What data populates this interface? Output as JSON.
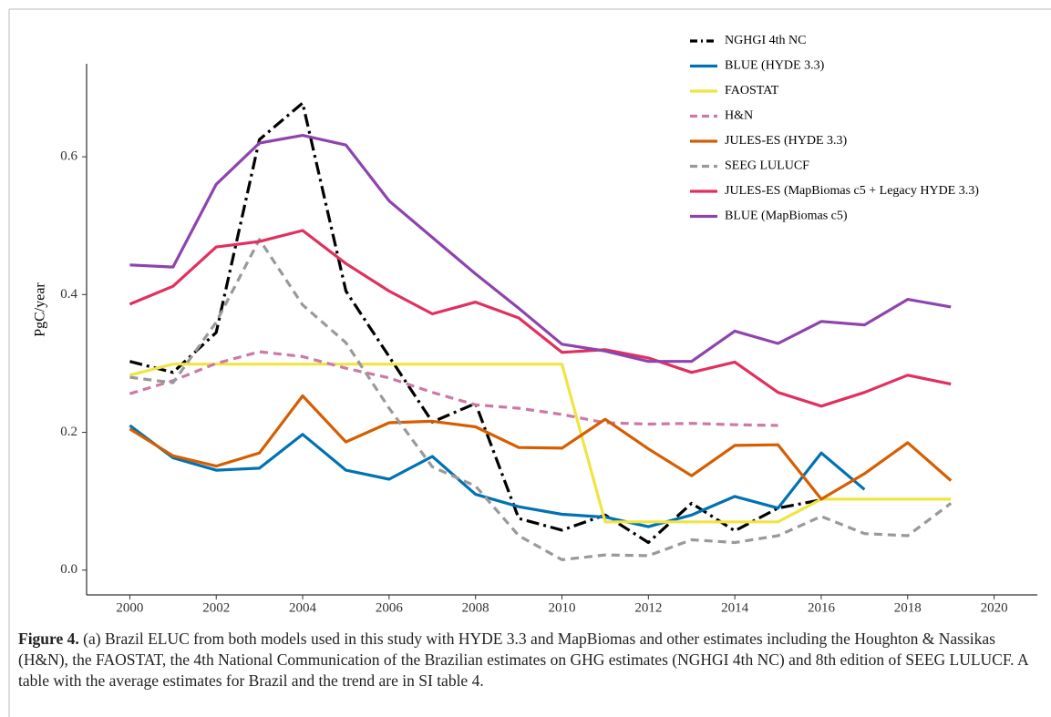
{
  "chart_data": {
    "type": "line",
    "y_label": "PgC/year",
    "x": [
      2000,
      2001,
      2002,
      2003,
      2004,
      2005,
      2006,
      2007,
      2008,
      2009,
      2010,
      2011,
      2012,
      2013,
      2014,
      2015,
      2016,
      2017,
      2018,
      2019
    ],
    "xlim": [
      1999,
      2021
    ],
    "xticks": [
      2000,
      2002,
      2004,
      2006,
      2008,
      2010,
      2012,
      2014,
      2016,
      2018,
      2020
    ],
    "ylim": [
      -0.036,
      0.735
    ],
    "yticks": [
      {
        "value": 0,
        "label": "0.0"
      },
      0.2,
      0.4,
      0.6
    ],
    "grid": false,
    "legend": "top-right",
    "series": [
      {
        "name": "NGHGI 4th NC",
        "color": "#000000",
        "dash": "dotdash",
        "values": [
          0.303,
          0.287,
          0.345,
          0.625,
          0.678,
          0.405,
          0.31,
          0.215,
          0.242,
          0.075,
          0.058,
          0.08,
          0.04,
          0.097,
          0.057,
          0.09,
          0.102,
          null,
          null,
          null
        ]
      },
      {
        "name": "BLUE (HYDE 3.3)",
        "color": "#0072b2",
        "dash": "solid",
        "values": [
          0.21,
          0.163,
          0.145,
          0.148,
          0.197,
          0.145,
          0.132,
          0.165,
          0.11,
          0.092,
          0.081,
          0.077,
          0.063,
          0.08,
          0.107,
          0.09,
          0.17,
          0.117,
          null,
          null
        ]
      },
      {
        "name": "FAOSTAT",
        "color": "#f0e442",
        "dash": "solid",
        "values": [
          0.283,
          0.299,
          0.299,
          0.299,
          0.299,
          0.299,
          0.299,
          0.299,
          0.299,
          0.299,
          0.299,
          0.07,
          0.07,
          0.07,
          0.07,
          0.07,
          0.103,
          0.103,
          0.103,
          0.103
        ]
      },
      {
        "name": "H&N",
        "color": "#cc79a7",
        "dash": "dashed",
        "values": [
          0.256,
          0.275,
          0.3,
          0.317,
          0.31,
          0.293,
          0.279,
          0.258,
          0.24,
          0.235,
          0.226,
          0.214,
          0.212,
          0.213,
          0.211,
          0.21,
          null,
          null,
          null,
          null
        ]
      },
      {
        "name": "JULES-ES (HYDE 3.3)",
        "color": "#d55e00",
        "dash": "solid",
        "values": [
          0.205,
          0.166,
          0.151,
          0.17,
          0.253,
          0.186,
          0.214,
          0.216,
          0.208,
          0.178,
          0.177,
          0.219,
          0.176,
          0.137,
          0.181,
          0.182,
          0.103,
          0.14,
          0.185,
          0.13
        ]
      },
      {
        "name": "SEEG LULUCF",
        "color": "#999999",
        "dash": "dashed",
        "values": [
          0.28,
          0.272,
          0.36,
          0.48,
          0.385,
          0.33,
          0.235,
          0.15,
          0.122,
          0.05,
          0.015,
          0.022,
          0.021,
          0.044,
          0.04,
          0.05,
          0.078,
          0.053,
          0.05,
          0.097
        ]
      },
      {
        "name": "JULES-ES (MapBiomas c5 + Legacy HYDE 3.3)",
        "color": "#e0305f",
        "dash": "solid",
        "values": [
          0.386,
          0.412,
          0.469,
          0.477,
          0.493,
          0.445,
          0.405,
          0.372,
          0.389,
          0.366,
          0.316,
          0.32,
          0.308,
          0.287,
          0.302,
          0.258,
          0.238,
          0.258,
          0.283,
          0.27
        ]
      },
      {
        "name": "BLUE (MapBiomas c5)",
        "color": "#8e44ad",
        "dash": "solid",
        "values": [
          0.443,
          0.44,
          0.56,
          0.62,
          0.631,
          0.617,
          0.536,
          0.483,
          0.43,
          0.38,
          0.328,
          0.318,
          0.303,
          0.303,
          0.347,
          0.329,
          0.361,
          0.356,
          0.393,
          0.382
        ]
      }
    ],
    "caption_label": "Figure 4.",
    "caption": "(a) Brazil ELUC from both models used in this study with HYDE 3.3 and MapBiomas and other estimates including the Houghton & Nassikas (H&N), the FAOSTAT, the 4th National Communication of the Brazilian estimates on GHG estimates (NGHGI 4th NC) and 8th edition of SEEG LULUCF. A table with the average estimates for Brazil and the trend are in SI table 4."
  }
}
